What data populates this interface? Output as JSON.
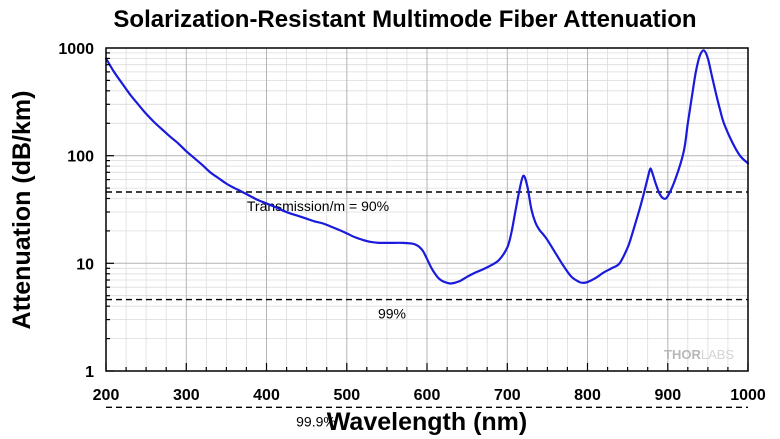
{
  "chart_data": {
    "type": "line",
    "title": "Solarization-Resistant Multimode Fiber Attenuation",
    "xlabel": "Wavelength (nm)",
    "ylabel": "Attenuation (dB/km)",
    "xlim": [
      200,
      1000
    ],
    "ylim": [
      1,
      1000
    ],
    "yscale": "log",
    "grid": true,
    "x_ticks": [
      200,
      300,
      400,
      500,
      600,
      700,
      800,
      900,
      1000
    ],
    "y_ticks": [
      1,
      10,
      100,
      1000
    ],
    "x_tick_labels": [
      "200",
      "300",
      "400",
      "500",
      "600",
      "700",
      "800",
      "900",
      "1000"
    ],
    "y_tick_labels": [
      "1",
      "10",
      "100",
      "1000"
    ],
    "series": [
      {
        "color": "#1a1adc",
        "x": [
          200,
          210,
          220,
          230,
          240,
          250,
          260,
          270,
          280,
          290,
          300,
          310,
          320,
          330,
          340,
          350,
          360,
          370,
          380,
          390,
          400,
          410,
          420,
          430,
          440,
          450,
          460,
          470,
          480,
          490,
          500,
          510,
          520,
          530,
          540,
          550,
          560,
          570,
          580,
          585,
          590,
          595,
          600,
          605,
          610,
          615,
          620,
          625,
          630,
          640,
          650,
          660,
          670,
          680,
          690,
          700,
          705,
          710,
          715,
          720,
          725,
          730,
          735,
          740,
          745,
          750,
          760,
          770,
          780,
          790,
          795,
          800,
          810,
          820,
          830,
          840,
          850,
          855,
          860,
          865,
          870,
          875,
          878,
          880,
          885,
          890,
          895,
          900,
          910,
          920,
          925,
          930,
          935,
          940,
          945,
          950,
          955,
          960,
          965,
          970,
          980,
          990,
          1000
        ],
        "y": [
          800,
          600,
          470,
          370,
          300,
          245,
          205,
          175,
          150,
          130,
          110,
          95,
          82,
          70,
          62,
          55,
          50,
          46,
          42,
          38.5,
          36,
          33.5,
          31,
          29,
          27.5,
          26,
          24.5,
          23.5,
          22,
          20.5,
          19,
          17.5,
          16.5,
          15.8,
          15.5,
          15.5,
          15.5,
          15.5,
          15.3,
          15,
          14.3,
          13,
          11,
          9.2,
          8,
          7.2,
          6.8,
          6.6,
          6.5,
          6.8,
          7.5,
          8.2,
          8.8,
          9.6,
          10.8,
          14,
          19,
          30,
          47,
          65,
          52,
          32,
          24,
          20.5,
          18.5,
          16.5,
          12.5,
          9.5,
          7.5,
          6.7,
          6.6,
          6.7,
          7.3,
          8.2,
          9,
          10,
          14,
          18,
          24,
          32,
          44,
          62,
          75,
          72,
          55,
          44,
          40,
          42,
          62,
          110,
          200,
          350,
          600,
          850,
          950,
          800,
          550,
          380,
          270,
          200,
          135,
          100,
          85
        ]
      }
    ],
    "reference_lines": [
      {
        "y": 46,
        "label": "Transmission/m = 90%"
      },
      {
        "y": 4.6,
        "label": "99%"
      },
      {
        "y": 0.46,
        "label": "99.9%"
      }
    ],
    "watermark": {
      "part1": "THOR",
      "part2": "LABS"
    }
  }
}
